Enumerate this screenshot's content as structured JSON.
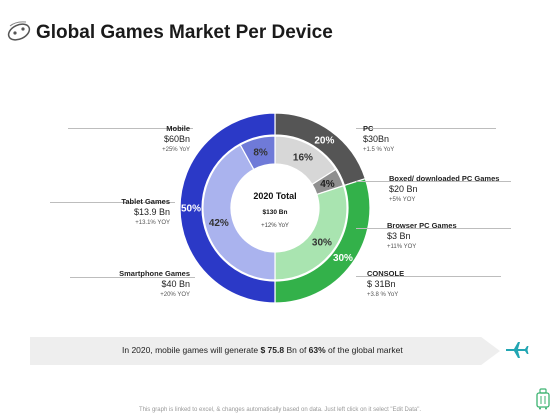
{
  "title": "Global Games Market Per Device",
  "chart_data": {
    "type": "pie",
    "center": {
      "title": "2020 Total",
      "value": "$130 Bn",
      "yoy": "+12% YoY"
    },
    "outer": {
      "values": [
        20,
        30,
        50
      ],
      "labels": [
        "20%",
        "30%",
        "50%"
      ],
      "colors": [
        "#555555",
        "#33b14a",
        "#2b39c7"
      ]
    },
    "inner": {
      "values": [
        16,
        4,
        30,
        42,
        8
      ],
      "labels": [
        "16%",
        "4%",
        "30%",
        "42%",
        "8%"
      ],
      "colors": [
        "#d7d7d7",
        "#8f8f8f",
        "#a9e4b0",
        "#aab3ee",
        "#6f7ad8"
      ]
    },
    "segments": [
      {
        "name": "Mobile",
        "value": "$60Bn",
        "yoy": "+25% YoY"
      },
      {
        "name": "Tablet Games",
        "value": "$13.9 Bn",
        "yoy": "+13.1% YOY"
      },
      {
        "name": "Smartphone Games",
        "value": "$40 Bn",
        "yoy": "+20% YOY"
      },
      {
        "name": "PC",
        "value": "$30Bn",
        "yoy": "+1.5 % YoY"
      },
      {
        "name": "Boxed/ downloaded PC Games",
        "value": "$20 Bn",
        "yoy": "+5% YOY"
      },
      {
        "name": "Browser PC Games",
        "value": "$3 Bn",
        "yoy": "+11% YOY"
      },
      {
        "name": "CONSOLE",
        "value": "$ 31Bn",
        "yoy": "+3.8 % YoY"
      }
    ]
  },
  "banner": {
    "prefix": "In 2020, mobile games will generate ",
    "amount": "$ 75.8",
    "middle": " Bn of ",
    "percent": "63%",
    "suffix": " of the global market"
  },
  "footer": "This graph is linked to excel, & changes automatically based on data. Just left click on it select \"Edit Data\".",
  "icons": {
    "logo": "gamepad-icon",
    "plane": "airplane-icon",
    "luggage": "luggage-icon"
  },
  "colors": {
    "plane": "#22a6b3",
    "luggage": "#3cb371"
  }
}
